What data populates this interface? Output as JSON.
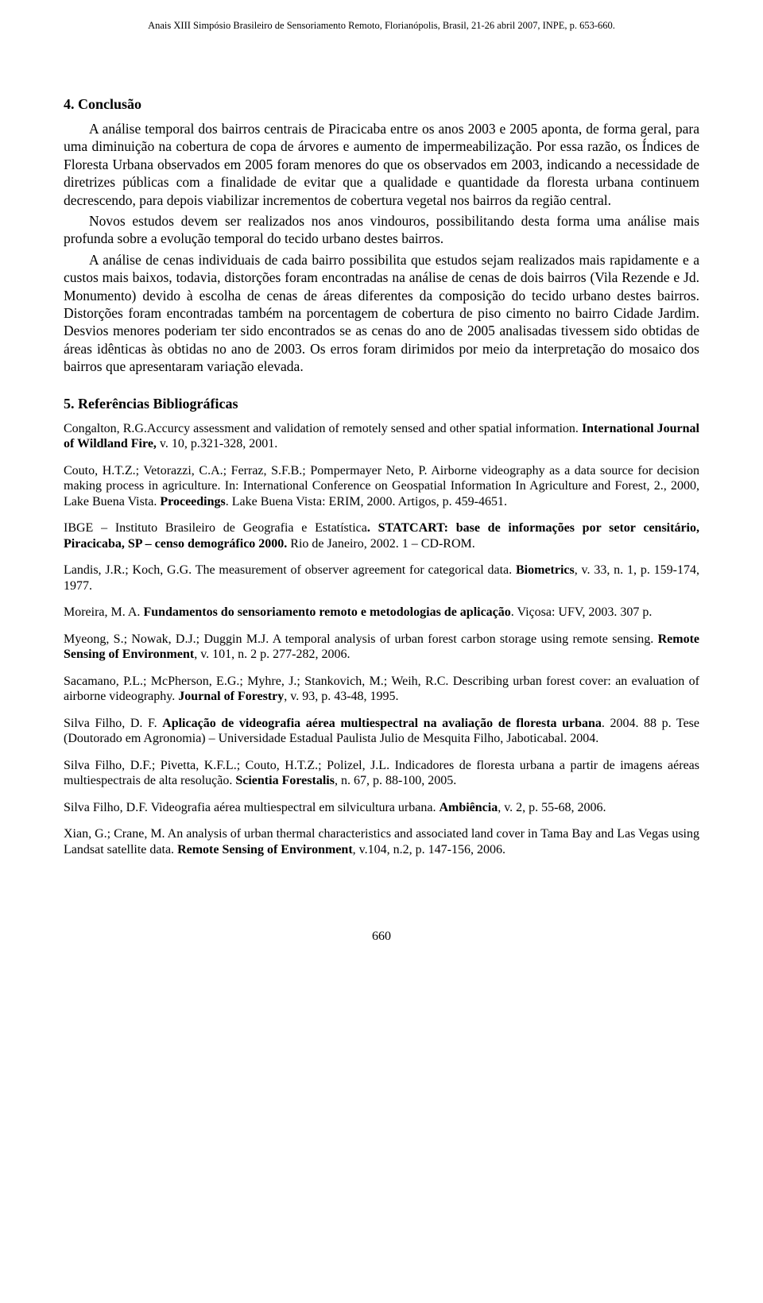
{
  "header": "Anais XIII Simpósio Brasileiro de Sensoriamento Remoto, Florianópolis, Brasil, 21-26 abril 2007, INPE, p. 653-660.",
  "section4_title": "4. Conclusão",
  "p1": "A análise temporal dos bairros centrais de Piracicaba entre os anos 2003 e 2005 aponta, de forma geral, para uma diminuição na cobertura de copa de árvores e aumento de impermeabilização. Por essa razão, os Índices de Floresta Urbana observados em 2005 foram menores do que os observados em 2003, indicando a necessidade de diretrizes públicas com a finalidade de evitar que a qualidade e quantidade da floresta urbana continuem decrescendo, para depois viabilizar incrementos de cobertura vegetal nos bairros da região central.",
  "p2": "Novos estudos devem ser realizados nos anos vindouros, possibilitando desta forma uma análise mais profunda sobre a evolução temporal do tecido urbano destes bairros.",
  "p3": "A análise de cenas individuais de cada bairro possibilita que estudos sejam realizados mais rapidamente e a custos mais baixos, todavia, distorções foram encontradas na análise de cenas de dois bairros (Vila Rezende e Jd. Monumento) devido à escolha de cenas de áreas diferentes da composição do tecido urbano destes bairros.  Distorções foram encontradas também na porcentagem de cobertura de piso cimento no bairro Cidade Jardim. Desvios menores poderiam ter sido encontrados se as cenas do ano de 2005 analisadas tivessem sido obtidas de áreas idênticas às obtidas no ano de 2003. Os erros foram dirimidos por meio da interpretação do mosaico dos bairros que apresentaram variação elevada.",
  "section5_title": "5. Referências Bibliográficas",
  "ref1a": "Congalton, R.G.Accurcy assessment and validation of remotely sensed and other spatial information. ",
  "ref1b": "International Journal of Wildland Fire, ",
  "ref1c": "v. 10, p.321-328, 2001.",
  "ref2a": "Couto, H.T.Z.; Vetorazzi, C.A.; Ferraz, S.F.B.; Pompermayer Neto, P. Airborne videography as a data source for decision making process in agriculture. In: International Conference on Geospatial Information In Agriculture and Forest, 2., 2000, Lake Buena Vista. ",
  "ref2b": "Proceedings",
  "ref2c": ". Lake Buena Vista: ERIM, 2000. Artigos, p. 459-4651.",
  "ref3a": "IBGE – Instituto Brasileiro de Geografia e Estatística",
  "ref3b": ". STATCART: base de informações por setor censitário, Piracicaba, SP – censo demográfico 2000. ",
  "ref3c": "Rio de Janeiro, 2002. 1 – CD-ROM.",
  "ref4a": "Landis, J.R.; Koch, G.G. The measurement of observer agreement for categorical data. ",
  "ref4b": "Biometrics",
  "ref4c": ", v. 33, n. 1, p. 159-174, 1977.",
  "ref5a": "Moreira, M. A. ",
  "ref5b": "Fundamentos do sensoriamento remoto e metodologias de aplicação",
  "ref5c": ". Viçosa: UFV, 2003. 307 p.",
  "ref6a": "Myeong, S.; Nowak, D.J.; Duggin M.J. A temporal analysis of urban forest carbon storage using remote sensing. ",
  "ref6b": "Remote Sensing of Environment",
  "ref6c": ", v. 101, n. 2 p. 277-282, 2006.",
  "ref7a": "Sacamano, P.L.; McPherson, E.G.; Myhre, J.; Stankovich, M.; Weih, R.C. Describing urban forest cover: an evaluation of airborne videography. ",
  "ref7b": "Journal of Forestry",
  "ref7c": ", v. 93, p. 43-48, 1995.",
  "ref8a": "Silva Filho, D. F. ",
  "ref8b": "Aplicação de videografia aérea multiespectral na avaliação de floresta urbana",
  "ref8c": ". 2004. 88 p. Tese (Doutorado em Agronomia) – Universidade Estadual Paulista Julio de Mesquita Filho, Jaboticabal. 2004.",
  "ref9a": "Silva Filho, D.F.; Pivetta, K.F.L.; Couto, H.T.Z.; Polizel, J.L. Indicadores de floresta urbana a partir de imagens aéreas multiespectrais de alta resolução. ",
  "ref9b": "Scientia Forestalis",
  "ref9c": ", n. 67, p. 88-100, 2005.",
  "ref10a": "Silva Filho, D.F. Videografia aérea multiespectral em silvicultura urbana. ",
  "ref10b": "Ambiência",
  "ref10c": ", v. 2, p. 55-68, 2006.",
  "ref11a": "Xian, G.; Crane, M. An analysis of urban thermal characteristics and associated land cover in Tama Bay and Las Vegas using Landsat satellite data. ",
  "ref11b": "Remote Sensing of Environment",
  "ref11c": ", v.104, n.2, p. 147-156, 2006.",
  "page_number": "660"
}
